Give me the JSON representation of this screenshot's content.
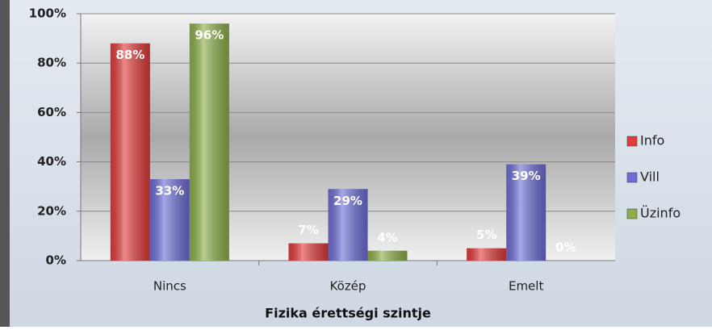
{
  "chart_data": {
    "type": "bar",
    "x_label": "Fizika érettségi szintje",
    "categories": [
      "Nincs",
      "Közép",
      "Emelt"
    ],
    "series": [
      {
        "name": "Info",
        "color": "#e23b3b",
        "values": [
          88,
          7,
          5
        ],
        "value_labels": [
          "88%",
          "7%",
          "5%"
        ]
      },
      {
        "name": "Vill",
        "color": "#6e6ed6",
        "values": [
          33,
          29,
          39
        ],
        "value_labels": [
          "33%",
          "29%",
          "39%"
        ]
      },
      {
        "name": "Üzinfo",
        "color": "#8db049",
        "values": [
          96,
          4,
          0
        ],
        "value_labels": [
          "96%",
          "4%",
          "0%"
        ]
      }
    ],
    "ylim": [
      0,
      100
    ],
    "yticks": [
      {
        "value": 0,
        "label": "0%"
      },
      {
        "value": 20,
        "label": "20%"
      },
      {
        "value": 40,
        "label": "40%"
      },
      {
        "value": 60,
        "label": "60%"
      },
      {
        "value": 80,
        "label": "80%"
      },
      {
        "value": 100,
        "label": "100%"
      }
    ],
    "grid": true,
    "legend": "right"
  }
}
